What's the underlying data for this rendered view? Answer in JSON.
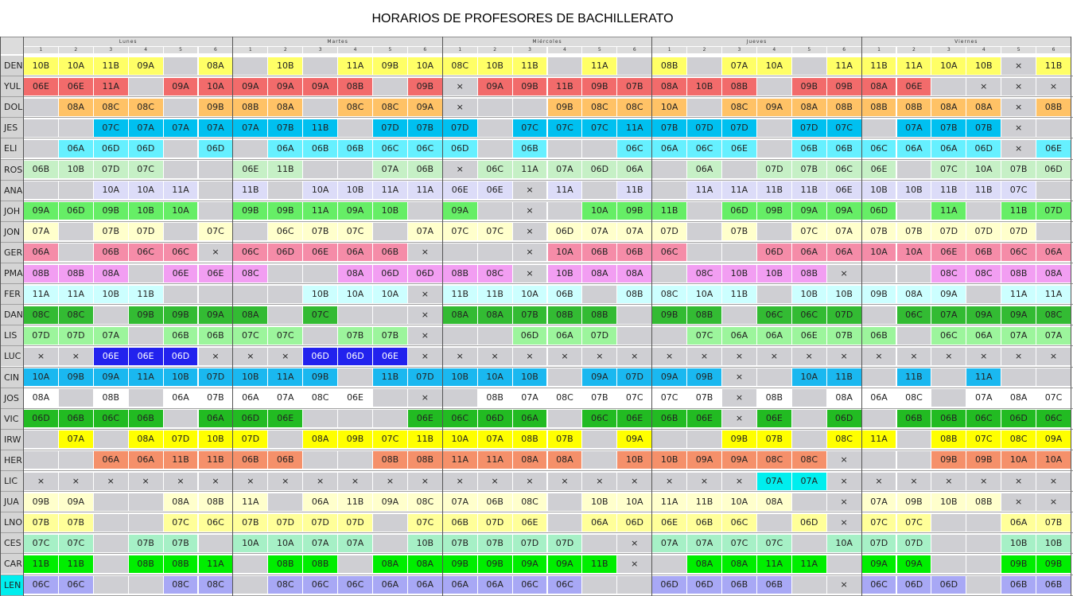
{
  "title": "HORARIOS DE PROFESORES DE BACHILLERATO",
  "days": [
    "Lunes",
    "Martes",
    "Miércoles",
    "Jueves",
    "Viernes"
  ],
  "periods": [
    "1",
    "2",
    "3",
    "4",
    "5",
    "6"
  ],
  "colors": {
    "empty": "#cfcfd3",
    "DEN": "#ffff66",
    "YUL": "#f26b6b",
    "DOL": "#ffc266",
    "JES": "#00c0f0",
    "ELI": "#66f0ff",
    "ROS": "#c6f0c6",
    "ANA": "#dcdcf8",
    "JOH": "#66ee66",
    "JON": "#ffffcc",
    "GER": "#f58ca8",
    "PMA": "#f29ef2",
    "FER": "#ccffff",
    "DAN": "#33bb33",
    "LIS": "#9cf59c",
    "LUC": "#2222ee",
    "CIN": "#1ab8f0",
    "JOS": "#ffffff",
    "VIC": "#22bb22",
    "IRW": "#ffff00",
    "HER": "#f5906a",
    "LIC": "#00eeee",
    "JUA": "#ffffcc",
    "LNO": "#ffff99",
    "CES": "#a6f0c6",
    "CAR": "#00ee00",
    "LEN": "#a8a8f5"
  },
  "rows": [
    {
      "name": "DEN",
      "cells": [
        "10B",
        "10A",
        "11B",
        "09A",
        "",
        "08A",
        "",
        "10B",
        "",
        "11A",
        "09B",
        "10A",
        "08C",
        "10B",
        "11B",
        "",
        "11A",
        "",
        "08B",
        "",
        "07A",
        "10A",
        "",
        "11A",
        "11B",
        "11A",
        "10A",
        "10B",
        "×",
        "11B"
      ]
    },
    {
      "name": "YUL",
      "cells": [
        "06E",
        "06E",
        "11A",
        "",
        "09A",
        "10A",
        "09A",
        "09A",
        "09A",
        "08B",
        "",
        "09B",
        "×",
        "09A",
        "09B",
        "11B",
        "09B",
        "07B",
        "08A",
        "10B",
        "08B",
        "",
        "09B",
        "09B",
        "08A",
        "06E",
        "",
        "×",
        "×",
        "×"
      ]
    },
    {
      "name": "DOL",
      "cells": [
        "",
        "08A",
        "08C",
        "08C",
        "",
        "09B",
        "08B",
        "08A",
        "",
        "08C",
        "08C",
        "09A",
        "×",
        "",
        "",
        "09B",
        "08C",
        "08C",
        "10A",
        "",
        "08C",
        "09A",
        "08A",
        "08B",
        "08B",
        "08B",
        "08A",
        "08A",
        "×",
        "08B"
      ]
    },
    {
      "name": "JES",
      "cells": [
        "",
        "",
        "07C",
        "07A",
        "07A",
        "07A",
        "07A",
        "07B",
        "11B",
        "",
        "07D",
        "07B",
        "07D",
        "",
        "07C",
        "07C",
        "07C",
        "11A",
        "07B",
        "07D",
        "07D",
        "",
        "07D",
        "07C",
        "",
        "07A",
        "07B",
        "07B",
        "×",
        ""
      ]
    },
    {
      "name": "ELI",
      "cells": [
        "",
        "06A",
        "06D",
        "06D",
        "",
        "06D",
        "",
        "06A",
        "06B",
        "06B",
        "06C",
        "06C",
        "06D",
        "",
        "06B",
        "",
        "",
        "06C",
        "06A",
        "06C",
        "06E",
        "",
        "06B",
        "06B",
        "06C",
        "06A",
        "06A",
        "06D",
        "×",
        "06E"
      ]
    },
    {
      "name": "ROS",
      "cells": [
        "06B",
        "10B",
        "07D",
        "07C",
        "",
        "",
        "06E",
        "11B",
        "",
        "",
        "07A",
        "06B",
        "×",
        "06C",
        "11A",
        "07A",
        "06D",
        "06A",
        "",
        "06A",
        "",
        "07D",
        "07B",
        "06C",
        "06E",
        "",
        "07C",
        "10A",
        "07B",
        "06D"
      ]
    },
    {
      "name": "ANA",
      "cells": [
        "",
        "",
        "10A",
        "10A",
        "11A",
        "",
        "11B",
        "",
        "10A",
        "10B",
        "11A",
        "11A",
        "06E",
        "06E",
        "×",
        "11A",
        "",
        "11B",
        "",
        "11A",
        "11A",
        "11B",
        "11B",
        "06E",
        "10B",
        "10B",
        "11B",
        "11B",
        "07C",
        ""
      ]
    },
    {
      "name": "JOH",
      "cells": [
        "09A",
        "06D",
        "09B",
        "10B",
        "10A",
        "",
        "09B",
        "09B",
        "11A",
        "09A",
        "10B",
        "",
        "09A",
        "",
        "×",
        "",
        "10A",
        "09B",
        "11B",
        "",
        "06D",
        "09B",
        "09A",
        "09A",
        "06D",
        "",
        "11A",
        "",
        "11B",
        "07D"
      ]
    },
    {
      "name": "JON",
      "cells": [
        "07A",
        "",
        "07B",
        "07D",
        "",
        "07C",
        "",
        "06C",
        "07B",
        "07C",
        "",
        "07A",
        "07C",
        "07C",
        "×",
        "06D",
        "07A",
        "07A",
        "07D",
        "",
        "07B",
        "",
        "07C",
        "07A",
        "07B",
        "07B",
        "07D",
        "07D",
        "07D",
        ""
      ]
    },
    {
      "name": "GER",
      "cells": [
        "06A",
        "",
        "06B",
        "06C",
        "06C",
        "×",
        "06C",
        "06D",
        "06E",
        "06A",
        "06B",
        "×",
        "",
        "",
        "×",
        "10A",
        "06B",
        "06B",
        "06C",
        "",
        "",
        "06D",
        "06A",
        "06A",
        "10A",
        "10A",
        "06E",
        "06B",
        "06C",
        "06A"
      ]
    },
    {
      "name": "PMA",
      "cells": [
        "08B",
        "08B",
        "08A",
        "",
        "06E",
        "06E",
        "08C",
        "",
        "",
        "08A",
        "06D",
        "06D",
        "08B",
        "08C",
        "×",
        "10B",
        "08A",
        "08A",
        "",
        "08C",
        "10B",
        "10B",
        "08B",
        "×",
        "",
        "",
        "08C",
        "08C",
        "08B",
        "08A"
      ]
    },
    {
      "name": "FER",
      "cells": [
        "11A",
        "11A",
        "10B",
        "11B",
        "",
        "",
        "",
        "",
        "10B",
        "10A",
        "10A",
        "×",
        "11B",
        "11B",
        "10A",
        "06B",
        "",
        "08B",
        "08C",
        "10A",
        "11B",
        "",
        "10B",
        "10B",
        "09B",
        "08A",
        "09A",
        "",
        "11A",
        "11A"
      ]
    },
    {
      "name": "DAN",
      "cells": [
        "08C",
        "08C",
        "",
        "09B",
        "09B",
        "09A",
        "08A",
        "",
        "07C",
        "",
        "",
        "×",
        "08A",
        "08A",
        "07B",
        "08B",
        "08B",
        "",
        "09B",
        "08B",
        "",
        "06C",
        "06C",
        "07D",
        "",
        "06C",
        "07A",
        "09A",
        "09A",
        "08C"
      ]
    },
    {
      "name": "LIS",
      "cells": [
        "07D",
        "07D",
        "07A",
        "",
        "06B",
        "06B",
        "07C",
        "07C",
        "",
        "07B",
        "07B",
        "×",
        "",
        "",
        "06D",
        "06A",
        "07D",
        "",
        "",
        "07C",
        "06A",
        "06A",
        "06E",
        "07B",
        "06B",
        "",
        "06C",
        "06A",
        "07A",
        "07A"
      ]
    },
    {
      "name": "LUC",
      "cells": [
        "×",
        "×",
        "06E",
        "06E",
        "06D",
        "×",
        "×",
        "×",
        "06D",
        "06D",
        "06E",
        "×",
        "×",
        "×",
        "×",
        "×",
        "×",
        "×",
        "×",
        "×",
        "×",
        "×",
        "×",
        "×",
        "×",
        "×",
        "×",
        "×",
        "×",
        "×"
      ]
    },
    {
      "name": "CIN",
      "cells": [
        "10A",
        "09B",
        "09A",
        "11A",
        "10B",
        "07D",
        "10B",
        "11A",
        "09B",
        "",
        "11B",
        "07D",
        "10B",
        "10A",
        "10B",
        "",
        "09A",
        "07D",
        "09A",
        "09B",
        "×",
        "",
        "10A",
        "11B",
        "",
        "11B",
        "",
        "11A",
        "",
        ""
      ]
    },
    {
      "name": "JOS",
      "cells": [
        "08A",
        "",
        "08B",
        "",
        "06A",
        "07B",
        "06A",
        "07A",
        "08C",
        "06E",
        "",
        "×",
        "",
        "08B",
        "07A",
        "08C",
        "07B",
        "07C",
        "07C",
        "07B",
        "×",
        "08B",
        "",
        "08A",
        "06A",
        "08C",
        "",
        "07A",
        "08A",
        "07C"
      ]
    },
    {
      "name": "VIC",
      "cells": [
        "06D",
        "06B",
        "06C",
        "06B",
        "",
        "06A",
        "06D",
        "06E",
        "",
        "",
        "",
        "06E",
        "06C",
        "06D",
        "06A",
        "",
        "06C",
        "06E",
        "06B",
        "06E",
        "×",
        "06E",
        "",
        "06D",
        "",
        "06B",
        "06B",
        "06C",
        "06D",
        "06C"
      ]
    },
    {
      "name": "IRW",
      "cells": [
        "",
        "07A",
        "",
        "08A",
        "07D",
        "10B",
        "07D",
        "",
        "08A",
        "09B",
        "07C",
        "11B",
        "10A",
        "07A",
        "08B",
        "07B",
        "",
        "09A",
        "",
        "",
        "09B",
        "07B",
        "",
        "08C",
        "11A",
        "",
        "08B",
        "07C",
        "08C",
        "09A"
      ]
    },
    {
      "name": "HER",
      "cells": [
        "",
        "",
        "06A",
        "06A",
        "11B",
        "11B",
        "06B",
        "06B",
        "",
        "",
        "08B",
        "08B",
        "11A",
        "11A",
        "08A",
        "08A",
        "",
        "10B",
        "10B",
        "09A",
        "09A",
        "08C",
        "08C",
        "×",
        "",
        "",
        "09B",
        "09B",
        "10A",
        "10A"
      ]
    },
    {
      "name": "LIC",
      "cells": [
        "×",
        "×",
        "×",
        "×",
        "×",
        "×",
        "×",
        "×",
        "×",
        "×",
        "×",
        "×",
        "×",
        "×",
        "×",
        "×",
        "×",
        "×",
        "×",
        "×",
        "×",
        "07A",
        "07A",
        "×",
        "×",
        "×",
        "×",
        "×",
        "×",
        "×"
      ]
    },
    {
      "name": "JUA",
      "cells": [
        "09B",
        "09A",
        "",
        "",
        "08A",
        "08B",
        "11A",
        "",
        "06A",
        "11B",
        "09A",
        "08C",
        "07A",
        "06B",
        "08C",
        "",
        "10B",
        "10A",
        "11A",
        "11B",
        "10A",
        "08A",
        "",
        "×",
        "07A",
        "09B",
        "10B",
        "08B",
        "×",
        "×"
      ]
    },
    {
      "name": "LNO",
      "cells": [
        "07B",
        "07B",
        "",
        "",
        "07C",
        "06C",
        "07B",
        "07D",
        "07D",
        "07D",
        "",
        "07C",
        "06B",
        "07D",
        "06E",
        "",
        "06A",
        "06D",
        "06E",
        "06B",
        "06C",
        "",
        "06D",
        "×",
        "07C",
        "07C",
        "",
        "",
        "06A",
        "07B"
      ]
    },
    {
      "name": "CES",
      "cells": [
        "07C",
        "07C",
        "",
        "07B",
        "07B",
        "",
        "10A",
        "10A",
        "07A",
        "07A",
        "",
        "10B",
        "07B",
        "07B",
        "07D",
        "07D",
        "",
        "×",
        "07A",
        "07A",
        "07C",
        "07C",
        "",
        "10A",
        "07D",
        "07D",
        "",
        "",
        "10B",
        "10B"
      ]
    },
    {
      "name": "CAR",
      "cells": [
        "11B",
        "11B",
        "",
        "08B",
        "08B",
        "11A",
        "",
        "08B",
        "08B",
        "",
        "08A",
        "08A",
        "09B",
        "09B",
        "09A",
        "09A",
        "11B",
        "×",
        "",
        "08A",
        "08A",
        "11A",
        "11A",
        "",
        "09A",
        "09A",
        "",
        "",
        "09B",
        "09B"
      ]
    },
    {
      "name": "LEN",
      "cells": [
        "06C",
        "06C",
        "",
        "",
        "08C",
        "08C",
        "",
        "08C",
        "06C",
        "06C",
        "06A",
        "06A",
        "06A",
        "06A",
        "06C",
        "06C",
        "",
        "",
        "06D",
        "06D",
        "06B",
        "06B",
        "",
        "×",
        "06C",
        "06D",
        "06D",
        "",
        "06B",
        "06B"
      ]
    }
  ]
}
